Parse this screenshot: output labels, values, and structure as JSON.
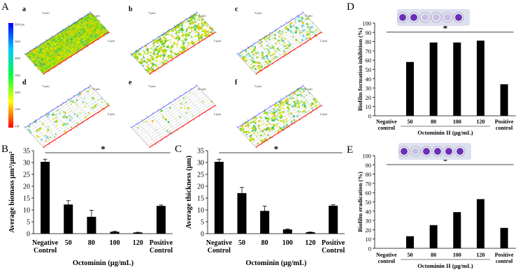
{
  "panels": {
    "A": {
      "label": "A",
      "colorbar_ticks": [
        "60.00 μm",
        "50.00",
        "40.00",
        "30.00",
        "20.00",
        "10.00",
        "0.00"
      ],
      "subpanels": [
        "a",
        "b",
        "c",
        "d",
        "e",
        "f"
      ],
      "axis_y": "Y (μm)",
      "axis_x": "X (μm)",
      "axis_z": "Z (μm)"
    },
    "B": {
      "label": "B"
    },
    "C": {
      "label": "C"
    },
    "D": {
      "label": "D"
    },
    "E": {
      "label": "E"
    }
  },
  "colors": {
    "bar": "#000000",
    "well_purple": "#6b2fb8",
    "well_pale": "#c9bfe6"
  },
  "chart_data": [
    {
      "id": "B",
      "type": "bar",
      "categories": [
        "Negative Control",
        "50",
        "80",
        "100",
        "120",
        "Positive Control"
      ],
      "values": [
        30.3,
        12.3,
        7.1,
        0.8,
        0.5,
        11.7
      ],
      "errors": [
        1.1,
        1.6,
        2.8,
        0.2,
        0.1,
        0.4
      ],
      "ylabel": "Average biomass μm³/μm²",
      "xlabel": "Octominin (μg/mL)",
      "ylim": [
        0,
        35
      ],
      "yticks": [
        "0",
        "5",
        "10",
        "15",
        "20",
        "25",
        "30",
        "35"
      ],
      "significance": "*"
    },
    {
      "id": "C",
      "type": "bar",
      "categories": [
        "Negative Control",
        "50",
        "80",
        "100",
        "120",
        "Positive Control"
      ],
      "values": [
        30.3,
        17.1,
        9.6,
        1.8,
        0.6,
        11.8
      ],
      "errors": [
        1.1,
        2.4,
        2.0,
        0.2,
        0.1,
        0.4
      ],
      "ylabel": "Average thickness (μm)",
      "xlabel": "Octominin (μg/mL)",
      "ylim": [
        0,
        35
      ],
      "yticks": [
        "0",
        "5",
        "10",
        "15",
        "20",
        "25",
        "30",
        "35"
      ],
      "significance": "*"
    },
    {
      "id": "D",
      "type": "bar",
      "categories": [
        "Negative control",
        "50",
        "80",
        "100",
        "120",
        "Positive control"
      ],
      "values": [
        0,
        58,
        79,
        79,
        81,
        34
      ],
      "ylabel": "Biofilm formation inhibition (%)",
      "xlabel": "Octominin II (μg/mL)",
      "ylim": [
        0,
        100
      ],
      "yticks": [
        "0",
        "10",
        "20",
        "30",
        "40",
        "50",
        "60",
        "70",
        "80",
        "90",
        "100"
      ],
      "significance": "*"
    },
    {
      "id": "E",
      "type": "bar",
      "categories": [
        "Negative control",
        "50",
        "80",
        "100",
        "120",
        "Positive control"
      ],
      "values": [
        0,
        13,
        25,
        39,
        53,
        22
      ],
      "ylabel": "Biofilm eradication (%)",
      "xlabel": "Octominin II (μg/mL)",
      "ylim": [
        0,
        100
      ],
      "yticks": [
        "0",
        "10",
        "20",
        "30",
        "40",
        "50",
        "60",
        "70",
        "80",
        "90",
        "100"
      ],
      "significance": "*"
    }
  ]
}
